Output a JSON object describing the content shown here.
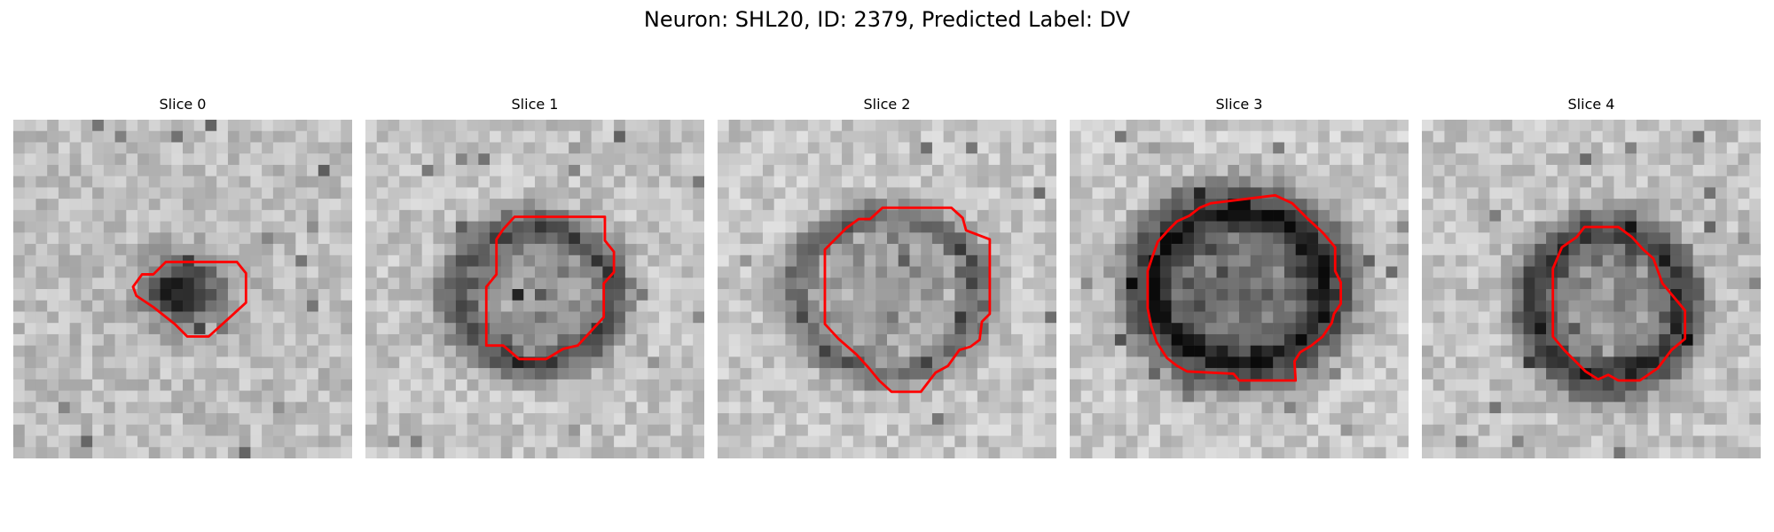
{
  "figure": {
    "title": "Neuron: SHL20, ID: 2379, Predicted Label: DV"
  },
  "panels": [
    {
      "title": "Slice 0",
      "shape": "small-dark-blob"
    },
    {
      "title": "Slice 1",
      "shape": "medium-ring"
    },
    {
      "title": "Slice 2",
      "shape": "large-ring"
    },
    {
      "title": "Slice 3",
      "shape": "dark-large-ring"
    },
    {
      "title": "Slice 4",
      "shape": "dark-ring"
    }
  ],
  "colors": {
    "contour": "#ff0000",
    "background": "#ffffff"
  }
}
